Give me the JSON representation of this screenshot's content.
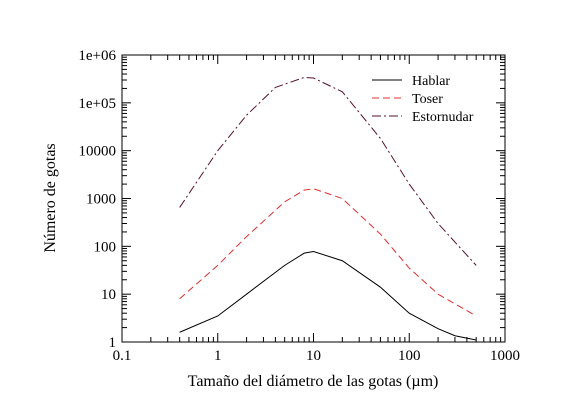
{
  "chart_data": {
    "type": "line",
    "title": "",
    "xlabel": "Tamaño del diámetro de las gotas (µm)",
    "ylabel": "Número de gotas",
    "xscale": "log",
    "yscale": "log",
    "xlim": [
      0.1,
      1000
    ],
    "ylim": [
      1,
      1000000
    ],
    "grid": false,
    "legend_position": "top-right",
    "x_tick_labels": [
      "0.1",
      "1",
      "10",
      "100",
      "1000"
    ],
    "y_tick_labels": [
      "1",
      "10",
      "100",
      "1000",
      "10000",
      "1e+05",
      "1e+06"
    ],
    "series": [
      {
        "name": "Hablar",
        "color": "#000000",
        "dash": "solid",
        "points": [
          [
            0.4,
            1.6
          ],
          [
            1,
            3.5
          ],
          [
            2,
            10
          ],
          [
            5,
            40
          ],
          [
            8,
            72
          ],
          [
            10,
            78
          ],
          [
            20,
            50
          ],
          [
            50,
            14
          ],
          [
            100,
            4
          ],
          [
            200,
            1.9
          ],
          [
            300,
            1.35
          ],
          [
            500,
            1.1
          ]
        ]
      },
      {
        "name": "Toser",
        "color": "#e03030",
        "dash": "dashed",
        "points": [
          [
            0.4,
            8
          ],
          [
            1,
            40
          ],
          [
            2,
            160
          ],
          [
            5,
            850
          ],
          [
            8,
            1500
          ],
          [
            10,
            1600
          ],
          [
            20,
            1000
          ],
          [
            50,
            180
          ],
          [
            100,
            35
          ],
          [
            200,
            10
          ],
          [
            500,
            3.5
          ]
        ]
      },
      {
        "name": "Estornudar",
        "color": "#5a1028",
        "dash": "dashdot",
        "points": [
          [
            0.4,
            650
          ],
          [
            1,
            10000
          ],
          [
            2,
            55000
          ],
          [
            4,
            210000
          ],
          [
            8,
            340000
          ],
          [
            10,
            330000
          ],
          [
            20,
            170000
          ],
          [
            50,
            18000
          ],
          [
            100,
            2000
          ],
          [
            200,
            300
          ],
          [
            500,
            40
          ]
        ]
      }
    ]
  }
}
